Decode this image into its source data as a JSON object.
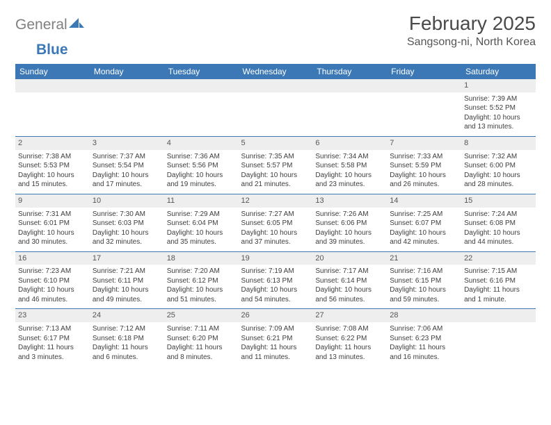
{
  "brand": {
    "part1": "General",
    "part2": "Blue"
  },
  "title": "February 2025",
  "location": "Sangsong-ni, North Korea",
  "colors": {
    "header_bg": "#3b78b5",
    "header_text": "#ffffff",
    "daynum_bg": "#eeeeee",
    "text": "#3d3d3d",
    "rule": "#3b78b5"
  },
  "weekdays": [
    "Sunday",
    "Monday",
    "Tuesday",
    "Wednesday",
    "Thursday",
    "Friday",
    "Saturday"
  ],
  "weeks": [
    [
      null,
      null,
      null,
      null,
      null,
      null,
      {
        "n": "1",
        "sr": "Sunrise: 7:39 AM",
        "ss": "Sunset: 5:52 PM",
        "d1": "Daylight: 10 hours",
        "d2": "and 13 minutes."
      }
    ],
    [
      {
        "n": "2",
        "sr": "Sunrise: 7:38 AM",
        "ss": "Sunset: 5:53 PM",
        "d1": "Daylight: 10 hours",
        "d2": "and 15 minutes."
      },
      {
        "n": "3",
        "sr": "Sunrise: 7:37 AM",
        "ss": "Sunset: 5:54 PM",
        "d1": "Daylight: 10 hours",
        "d2": "and 17 minutes."
      },
      {
        "n": "4",
        "sr": "Sunrise: 7:36 AM",
        "ss": "Sunset: 5:56 PM",
        "d1": "Daylight: 10 hours",
        "d2": "and 19 minutes."
      },
      {
        "n": "5",
        "sr": "Sunrise: 7:35 AM",
        "ss": "Sunset: 5:57 PM",
        "d1": "Daylight: 10 hours",
        "d2": "and 21 minutes."
      },
      {
        "n": "6",
        "sr": "Sunrise: 7:34 AM",
        "ss": "Sunset: 5:58 PM",
        "d1": "Daylight: 10 hours",
        "d2": "and 23 minutes."
      },
      {
        "n": "7",
        "sr": "Sunrise: 7:33 AM",
        "ss": "Sunset: 5:59 PM",
        "d1": "Daylight: 10 hours",
        "d2": "and 26 minutes."
      },
      {
        "n": "8",
        "sr": "Sunrise: 7:32 AM",
        "ss": "Sunset: 6:00 PM",
        "d1": "Daylight: 10 hours",
        "d2": "and 28 minutes."
      }
    ],
    [
      {
        "n": "9",
        "sr": "Sunrise: 7:31 AM",
        "ss": "Sunset: 6:01 PM",
        "d1": "Daylight: 10 hours",
        "d2": "and 30 minutes."
      },
      {
        "n": "10",
        "sr": "Sunrise: 7:30 AM",
        "ss": "Sunset: 6:03 PM",
        "d1": "Daylight: 10 hours",
        "d2": "and 32 minutes."
      },
      {
        "n": "11",
        "sr": "Sunrise: 7:29 AM",
        "ss": "Sunset: 6:04 PM",
        "d1": "Daylight: 10 hours",
        "d2": "and 35 minutes."
      },
      {
        "n": "12",
        "sr": "Sunrise: 7:27 AM",
        "ss": "Sunset: 6:05 PM",
        "d1": "Daylight: 10 hours",
        "d2": "and 37 minutes."
      },
      {
        "n": "13",
        "sr": "Sunrise: 7:26 AM",
        "ss": "Sunset: 6:06 PM",
        "d1": "Daylight: 10 hours",
        "d2": "and 39 minutes."
      },
      {
        "n": "14",
        "sr": "Sunrise: 7:25 AM",
        "ss": "Sunset: 6:07 PM",
        "d1": "Daylight: 10 hours",
        "d2": "and 42 minutes."
      },
      {
        "n": "15",
        "sr": "Sunrise: 7:24 AM",
        "ss": "Sunset: 6:08 PM",
        "d1": "Daylight: 10 hours",
        "d2": "and 44 minutes."
      }
    ],
    [
      {
        "n": "16",
        "sr": "Sunrise: 7:23 AM",
        "ss": "Sunset: 6:10 PM",
        "d1": "Daylight: 10 hours",
        "d2": "and 46 minutes."
      },
      {
        "n": "17",
        "sr": "Sunrise: 7:21 AM",
        "ss": "Sunset: 6:11 PM",
        "d1": "Daylight: 10 hours",
        "d2": "and 49 minutes."
      },
      {
        "n": "18",
        "sr": "Sunrise: 7:20 AM",
        "ss": "Sunset: 6:12 PM",
        "d1": "Daylight: 10 hours",
        "d2": "and 51 minutes."
      },
      {
        "n": "19",
        "sr": "Sunrise: 7:19 AM",
        "ss": "Sunset: 6:13 PM",
        "d1": "Daylight: 10 hours",
        "d2": "and 54 minutes."
      },
      {
        "n": "20",
        "sr": "Sunrise: 7:17 AM",
        "ss": "Sunset: 6:14 PM",
        "d1": "Daylight: 10 hours",
        "d2": "and 56 minutes."
      },
      {
        "n": "21",
        "sr": "Sunrise: 7:16 AM",
        "ss": "Sunset: 6:15 PM",
        "d1": "Daylight: 10 hours",
        "d2": "and 59 minutes."
      },
      {
        "n": "22",
        "sr": "Sunrise: 7:15 AM",
        "ss": "Sunset: 6:16 PM",
        "d1": "Daylight: 11 hours",
        "d2": "and 1 minute."
      }
    ],
    [
      {
        "n": "23",
        "sr": "Sunrise: 7:13 AM",
        "ss": "Sunset: 6:17 PM",
        "d1": "Daylight: 11 hours",
        "d2": "and 3 minutes."
      },
      {
        "n": "24",
        "sr": "Sunrise: 7:12 AM",
        "ss": "Sunset: 6:18 PM",
        "d1": "Daylight: 11 hours",
        "d2": "and 6 minutes."
      },
      {
        "n": "25",
        "sr": "Sunrise: 7:11 AM",
        "ss": "Sunset: 6:20 PM",
        "d1": "Daylight: 11 hours",
        "d2": "and 8 minutes."
      },
      {
        "n": "26",
        "sr": "Sunrise: 7:09 AM",
        "ss": "Sunset: 6:21 PM",
        "d1": "Daylight: 11 hours",
        "d2": "and 11 minutes."
      },
      {
        "n": "27",
        "sr": "Sunrise: 7:08 AM",
        "ss": "Sunset: 6:22 PM",
        "d1": "Daylight: 11 hours",
        "d2": "and 13 minutes."
      },
      {
        "n": "28",
        "sr": "Sunrise: 7:06 AM",
        "ss": "Sunset: 6:23 PM",
        "d1": "Daylight: 11 hours",
        "d2": "and 16 minutes."
      },
      null
    ]
  ]
}
